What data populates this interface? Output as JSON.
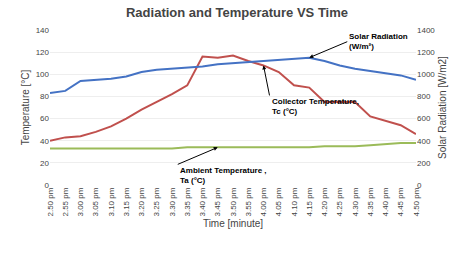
{
  "chart_data": {
    "type": "line",
    "title": "Radiation and Temperature VS Time",
    "xlabel": "Time [minute]",
    "ylabel": "Temperature [°C]",
    "y2label": "Solar Radiation [W/m2]",
    "categories": [
      "2.50 pm",
      "2.55 pm",
      "3.00 pm",
      "3.05 pm",
      "3.10 pm",
      "3.15 pm",
      "3.20 pm",
      "3.25 pm",
      "3.30 pm",
      "3.35 pm",
      "3.40 pm",
      "3.45 pm",
      "3.50 pm",
      "3.55 pm",
      "4.00 pm",
      "4.05 pm",
      "4.10 pm",
      "4.15 pm",
      "4.20 pm",
      "4.25 pm",
      "4.30 pm",
      "4.35 pm",
      "4.40 pm",
      "4.45 pm",
      "4.50 pm"
    ],
    "series": [
      {
        "color": "#4472C4",
        "axis": "y2",
        "values": [
          830,
          850,
          940,
          950,
          960,
          980,
          1020,
          1040,
          1050,
          1060,
          1070,
          1090,
          1100,
          1110,
          1120,
          1130,
          1140,
          1150,
          1120,
          1080,
          1050,
          1030,
          1010,
          990,
          950
        ]
      },
      {
        "color": "#C0504D",
        "values": [
          40,
          43,
          44,
          48,
          53,
          60,
          68,
          75,
          82,
          90,
          116,
          115,
          117,
          112,
          108,
          102,
          90,
          88,
          75,
          75,
          75,
          62,
          58,
          54,
          46
        ]
      },
      {
        "color": "#9BBB59",
        "values": [
          33,
          33,
          33,
          33,
          33,
          33,
          33,
          33,
          33,
          34,
          34,
          34,
          34,
          34,
          34,
          34,
          34,
          34,
          35,
          35,
          35,
          36,
          37,
          38,
          38
        ]
      }
    ],
    "ylim": [
      0,
      140
    ],
    "yticks": [
      0,
      20,
      40,
      60,
      80,
      100,
      120,
      140
    ],
    "y2lim": [
      0,
      1400
    ],
    "y2ticks": [
      0,
      200,
      400,
      600,
      800,
      1000,
      1200,
      1400
    ],
    "grid": true,
    "annotations": [
      {
        "text": "Solar Radiation\n(W/m²)",
        "x": "4.15 pm",
        "y": 1150,
        "axis": "y2"
      },
      {
        "text": "Collector Temperature,\nTc (°C)",
        "x": "4.00 pm",
        "y": 108,
        "axis": "y"
      },
      {
        "text": "Ambient Temperature ,\nTa (°C)",
        "x": "3.45 pm",
        "y": 34,
        "axis": "y"
      }
    ]
  }
}
